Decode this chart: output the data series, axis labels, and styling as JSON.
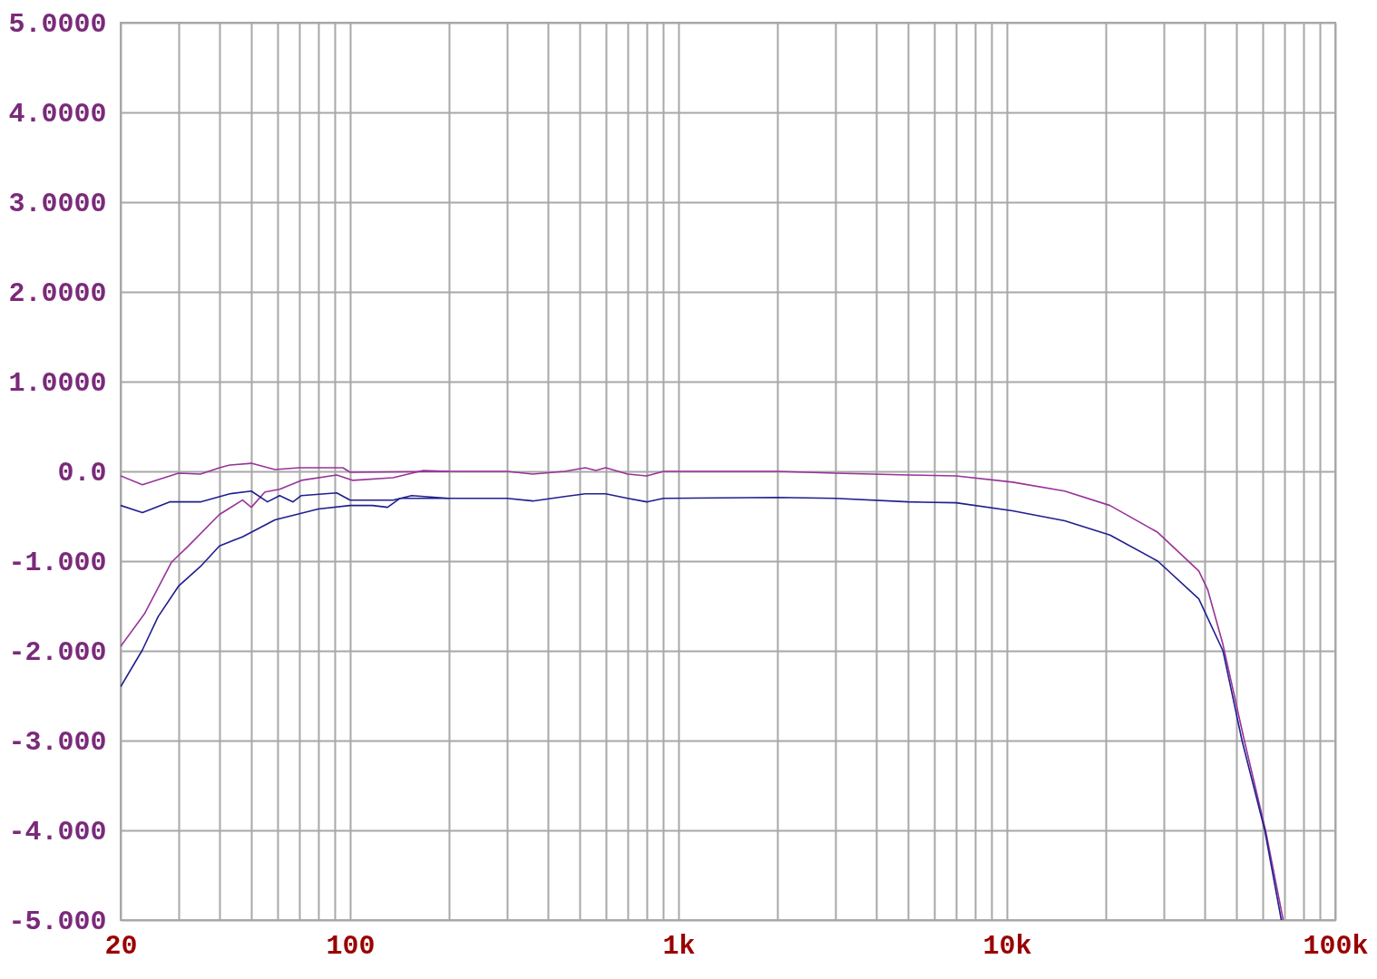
{
  "chart_data": {
    "type": "line",
    "grid": true,
    "log": "x",
    "xlim": [
      20,
      100000
    ],
    "ylim": [
      -5,
      5
    ],
    "xticks": [
      20,
      {
        "value": 30,
        "label": null
      },
      {
        "value": 40,
        "label": null
      },
      {
        "value": 50,
        "label": null
      },
      {
        "value": 60,
        "label": null
      },
      {
        "value": 70,
        "label": null
      },
      {
        "value": 80,
        "label": null
      },
      {
        "value": 90,
        "label": null
      },
      100,
      {
        "value": 200,
        "label": null
      },
      {
        "value": 300,
        "label": null
      },
      {
        "value": 400,
        "label": null
      },
      {
        "value": 500,
        "label": null
      },
      {
        "value": 600,
        "label": null
      },
      {
        "value": 700,
        "label": null
      },
      {
        "value": 800,
        "label": null
      },
      {
        "value": 900,
        "label": null
      },
      {
        "value": 1000,
        "label": "1k"
      },
      {
        "value": 2000,
        "label": null
      },
      {
        "value": 3000,
        "label": null
      },
      {
        "value": 4000,
        "label": null
      },
      {
        "value": 5000,
        "label": null
      },
      {
        "value": 6000,
        "label": null
      },
      {
        "value": 7000,
        "label": null
      },
      {
        "value": 8000,
        "label": null
      },
      {
        "value": 9000,
        "label": null
      },
      {
        "value": 10000,
        "label": "10k"
      },
      {
        "value": 20000,
        "label": null
      },
      {
        "value": 30000,
        "label": null
      },
      {
        "value": 40000,
        "label": null
      },
      {
        "value": 50000,
        "label": null
      },
      {
        "value": 60000,
        "label": null
      },
      {
        "value": 70000,
        "label": null
      },
      {
        "value": 80000,
        "label": null
      },
      {
        "value": 90000,
        "label": null
      },
      {
        "value": 100000,
        "label": "100k"
      }
    ],
    "yticks": [
      {
        "value": 5,
        "label": "5.0000"
      },
      {
        "value": 4,
        "label": "4.0000"
      },
      {
        "value": 3,
        "label": "3.0000"
      },
      {
        "value": 2,
        "label": "2.0000"
      },
      {
        "value": 1,
        "label": "1.0000"
      },
      {
        "value": 0,
        "label": "0.0"
      },
      {
        "value": -1,
        "label": "-1.000"
      },
      {
        "value": -2,
        "label": "-2.000"
      },
      {
        "value": -3,
        "label": "-3.000"
      },
      {
        "value": -4,
        "label": "-4.000"
      },
      {
        "value": -5,
        "label": "-5.000"
      }
    ],
    "series": [
      {
        "color": "#993399",
        "x": [
          20,
          23.3,
          30,
          35,
          40,
          43,
          50,
          59,
          70,
          95,
          100,
          200,
          300,
          360,
          450,
          520,
          560,
          600,
          700,
          800,
          900,
          2000,
          3000,
          5000,
          7000,
          10400,
          15000,
          20600,
          28800,
          38400,
          40900,
          45500,
          52700,
          61500,
          69400
        ],
        "values": [
          -0.05,
          -0.15,
          -0.02,
          -0.03,
          0.04,
          0.07,
          0.09,
          0.02,
          0.04,
          0.04,
          -0.01,
          0.0,
          0.0,
          -0.03,
          0.0,
          0.04,
          0.01,
          0.04,
          -0.03,
          -0.05,
          0.0,
          0.0,
          -0.02,
          -0.04,
          -0.05,
          -0.12,
          -0.22,
          -0.38,
          -0.68,
          -1.11,
          -1.32,
          -1.93,
          -2.98,
          -4.02,
          -5.0
        ]
      },
      {
        "color": "#993399",
        "x": [
          20,
          23.7,
          28.6,
          32,
          40,
          47,
          50,
          55,
          61,
          71,
          91,
          102,
          135,
          167,
          200
        ],
        "values": [
          -1.95,
          -1.58,
          -1.01,
          -0.84,
          -0.48,
          -0.32,
          -0.4,
          -0.23,
          -0.2,
          -0.1,
          -0.04,
          -0.1,
          -0.07,
          0.01,
          0.0
        ]
      },
      {
        "color": "#1f1f8f",
        "x": [
          20,
          23.3,
          28.2,
          35,
          43,
          50,
          56,
          61,
          67,
          71,
          91,
          100,
          135,
          154,
          200,
          300,
          360,
          450,
          520,
          600,
          700,
          800,
          900,
          2000,
          3000,
          5000,
          7000,
          10400,
          15000,
          20600,
          28800,
          38400,
          45500,
          52000,
          61000,
          68500
        ],
        "values": [
          -0.38,
          -0.46,
          -0.34,
          -0.34,
          -0.25,
          -0.22,
          -0.34,
          -0.27,
          -0.34,
          -0.27,
          -0.24,
          -0.32,
          -0.32,
          -0.27,
          -0.3,
          -0.3,
          -0.33,
          -0.28,
          -0.25,
          -0.25,
          -0.3,
          -0.34,
          -0.3,
          -0.29,
          -0.3,
          -0.34,
          -0.35,
          -0.44,
          -0.55,
          -0.71,
          -1.0,
          -1.42,
          -2.0,
          -3.0,
          -4.0,
          -5.0
        ]
      },
      {
        "color": "#1f1f8f",
        "x": [
          20,
          23.3,
          26,
          30,
          35,
          40,
          47,
          59,
          80,
          100,
          117,
          130,
          142,
          200
        ],
        "values": [
          -2.4,
          -1.99,
          -1.62,
          -1.28,
          -1.06,
          -0.83,
          -0.73,
          -0.54,
          -0.42,
          -0.38,
          -0.38,
          -0.4,
          -0.3,
          -0.3
        ]
      }
    ]
  }
}
